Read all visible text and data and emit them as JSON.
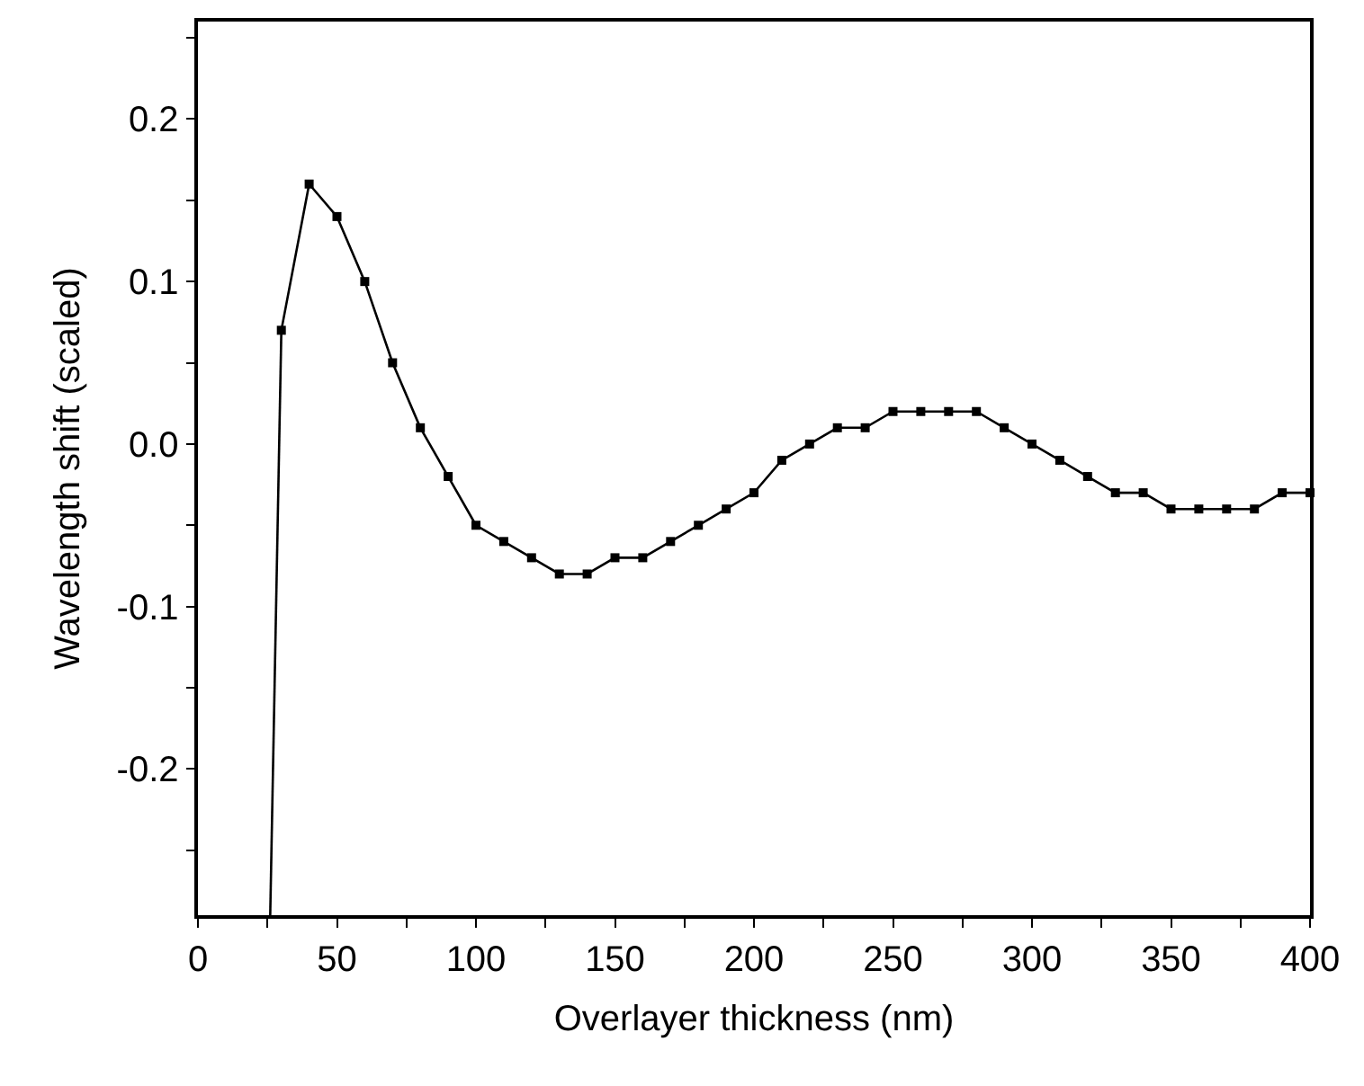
{
  "chart_data": {
    "type": "line",
    "xlabel": "Overlayer thickness (nm)",
    "ylabel": "Wavelength shift (scaled)",
    "xlim": [
      0,
      400
    ],
    "ylim": [
      -0.29,
      0.26
    ],
    "xticks": [
      0,
      {
        "value": 25,
        "label": null
      },
      50,
      {
        "value": 75,
        "label": null
      },
      100,
      {
        "value": 125,
        "label": null
      },
      150,
      {
        "value": 175,
        "label": null
      },
      200,
      {
        "value": 225,
        "label": null
      },
      250,
      {
        "value": 275,
        "label": null
      },
      300,
      {
        "value": 325,
        "label": null
      },
      350,
      {
        "value": 375,
        "label": null
      },
      400
    ],
    "yticks": [
      {
        "value": -0.25,
        "label": null
      },
      {
        "value": -0.2,
        "label": "-0.2"
      },
      {
        "value": -0.15,
        "label": null
      },
      {
        "value": -0.1,
        "label": "-0.1"
      },
      {
        "value": -0.05,
        "label": null
      },
      {
        "value": 0,
        "label": "0.0"
      },
      {
        "value": 0.05,
        "label": null
      },
      {
        "value": 0.1,
        "label": "0.1"
      },
      {
        "value": 0.15,
        "label": null
      },
      {
        "value": 0.2,
        "label": "0.2"
      },
      {
        "value": 0.25,
        "label": null
      }
    ],
    "line_style": "solid",
    "series": [
      {
        "color": "#000000",
        "x": [
          26,
          30
        ],
        "values": [
          -0.29,
          0.07
        ]
      },
      {
        "color": "#000000",
        "marker": "square",
        "x": [
          30,
          40,
          50,
          60,
          70,
          80,
          90,
          100,
          110,
          120,
          130,
          140,
          150,
          160,
          170,
          180,
          190,
          200,
          210,
          220,
          230,
          240,
          250,
          260,
          270,
          280,
          290,
          300,
          310,
          320,
          330,
          340,
          350,
          360,
          370,
          380,
          390,
          400
        ],
        "values": [
          0.07,
          0.16,
          0.14,
          0.1,
          0.05,
          0.01,
          -0.02,
          -0.05,
          -0.06,
          -0.07,
          -0.08,
          -0.08,
          -0.07,
          -0.07,
          -0.06,
          -0.05,
          -0.04,
          -0.03,
          -0.01,
          0.0,
          0.01,
          0.01,
          0.02,
          0.02,
          0.02,
          0.02,
          0.01,
          0.0,
          -0.01,
          -0.02,
          -0.03,
          -0.03,
          -0.04,
          -0.04,
          -0.04,
          -0.04,
          -0.03,
          -0.03
        ]
      }
    ]
  }
}
